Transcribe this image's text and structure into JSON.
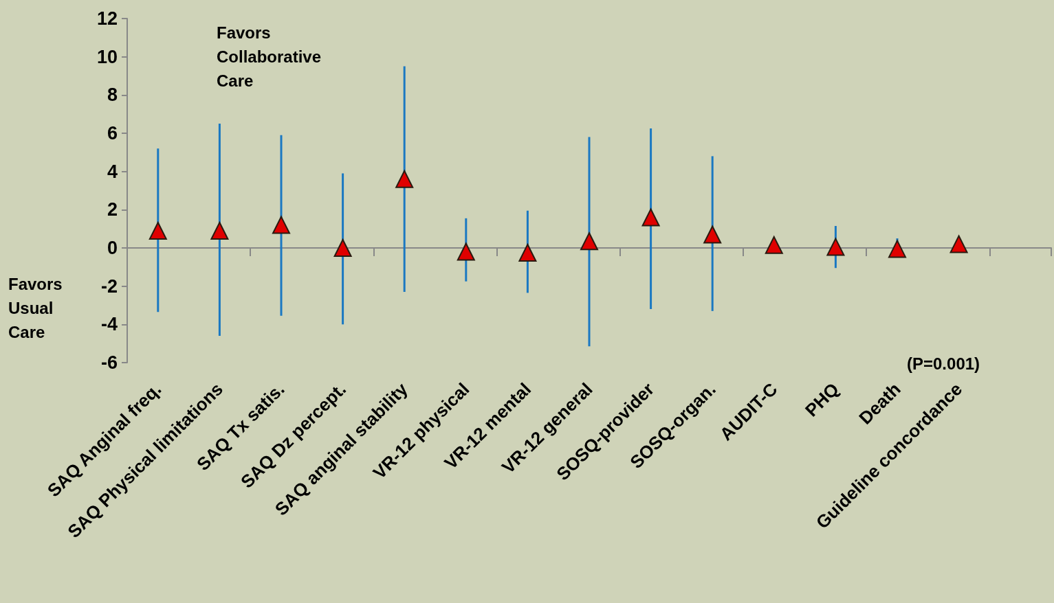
{
  "chart_data": {
    "type": "scatter",
    "categories": [
      "SAQ Anginal freq.",
      "SAQ Physical limitations",
      "SAQ Tx satis.",
      "SAQ Dz percept.",
      "SAQ anginal stability",
      "VR-12 physical",
      "VR-12 mental",
      "VR-12 general",
      "SOSQ-provider",
      "SOSQ-organ.",
      "AUDIT-C",
      "PHQ",
      "Death",
      "Guideline concordance",
      null
    ],
    "values": [
      0.9,
      0.9,
      1.2,
      0.0,
      3.6,
      -0.2,
      -0.25,
      0.35,
      1.6,
      0.7,
      0.15,
      0.05,
      -0.05,
      0.2,
      null
    ],
    "errors": [
      [
        -3.35,
        5.2
      ],
      [
        -4.6,
        6.5
      ],
      [
        -3.55,
        5.9
      ],
      [
        -4.0,
        3.9
      ],
      [
        -2.3,
        9.5
      ],
      [
        -1.75,
        1.55
      ],
      [
        -2.35,
        1.95
      ],
      [
        -5.15,
        5.8
      ],
      [
        -3.2,
        6.25
      ],
      [
        -3.3,
        4.8
      ],
      null,
      [
        -1.05,
        1.15
      ],
      [
        -0.4,
        0.5
      ],
      null,
      null
    ],
    "color": "#e00000",
    "marker": "triangle",
    "ylim": [
      -6,
      12
    ],
    "yticks": [
      -6,
      -4,
      -2,
      0,
      2,
      4,
      6,
      8,
      10,
      12
    ],
    "annotations": [
      "Favors Collaborative Care",
      "Favors Usual Care",
      "(P=0.001)"
    ]
  }
}
